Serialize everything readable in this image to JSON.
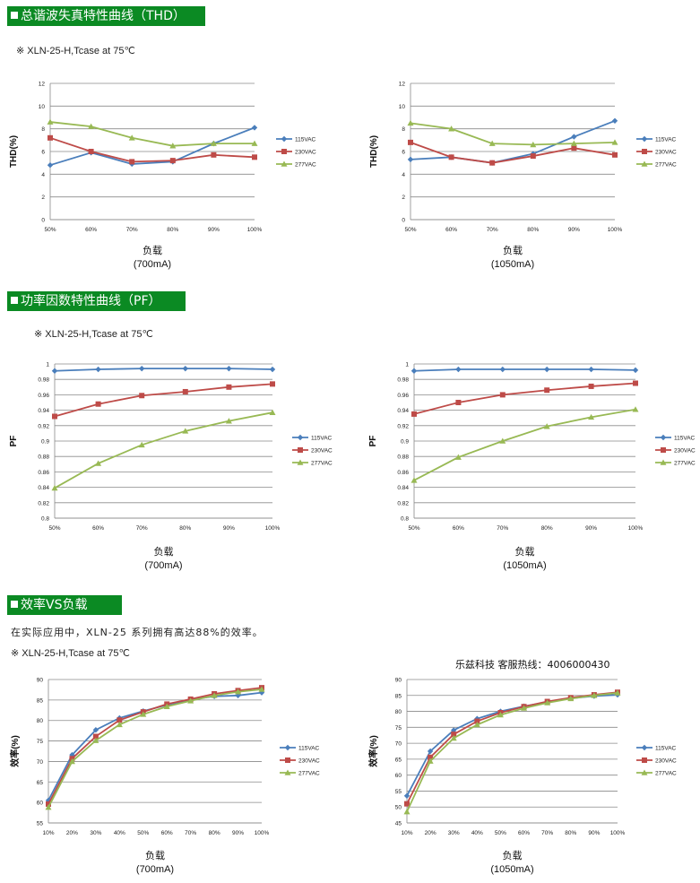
{
  "sections": {
    "thd": {
      "title": "总谐波失真特性曲线（THD）",
      "note": "※ XLN-25-H,Tcase at 75℃"
    },
    "pf": {
      "title": "功率因数特性曲线（PF）",
      "note": "※ XLN-25-H,Tcase at 75℃"
    },
    "eff": {
      "title": "效率VS负载",
      "desc": "在实际应用中，XLN-25 系列拥有高达88%的效率。",
      "note": "※ XLN-25-H,Tcase at 75℃",
      "contact": "乐兹科技 客服热线：4006000430"
    }
  },
  "chart_data": [
    {
      "id": "thd-700",
      "type": "line",
      "categories": [
        "50%",
        "60%",
        "70%",
        "80%",
        "90%",
        "100%"
      ],
      "ylabel": "THD(%)",
      "xlabel": "负载",
      "xsub": "(700mA)",
      "ylim": [
        0,
        12
      ],
      "yticks": [
        "0",
        "2",
        "4",
        "6",
        "8",
        "10",
        "12"
      ],
      "grid": true,
      "legend": "right",
      "series": [
        {
          "name": "115VAC",
          "color": "#4a7ebb",
          "marker": "diamond",
          "values": [
            4.8,
            5.9,
            4.9,
            5.1,
            6.7,
            8.1
          ]
        },
        {
          "name": "230VAC",
          "color": "#be4b48",
          "marker": "square",
          "values": [
            7.2,
            6.0,
            5.1,
            5.2,
            5.7,
            5.5
          ]
        },
        {
          "name": "277VAC",
          "color": "#98b954",
          "marker": "triangle",
          "values": [
            8.6,
            8.2,
            7.2,
            6.5,
            6.7,
            6.7
          ]
        }
      ]
    },
    {
      "id": "thd-1050",
      "type": "line",
      "categories": [
        "50%",
        "60%",
        "70%",
        "80%",
        "90%",
        "100%"
      ],
      "ylabel": "THD(%)",
      "xlabel": "负载",
      "xsub": "(1050mA)",
      "ylim": [
        0,
        12
      ],
      "yticks": [
        "0",
        "2",
        "4",
        "6",
        "8",
        "10",
        "12"
      ],
      "grid": true,
      "legend": "right",
      "series": [
        {
          "name": "115VAC",
          "color": "#4a7ebb",
          "marker": "diamond",
          "values": [
            5.3,
            5.5,
            5.0,
            5.8,
            7.3,
            8.7
          ]
        },
        {
          "name": "230VAC",
          "color": "#be4b48",
          "marker": "square",
          "values": [
            6.8,
            5.5,
            5.0,
            5.6,
            6.3,
            5.7
          ]
        },
        {
          "name": "277VAC",
          "color": "#98b954",
          "marker": "triangle",
          "values": [
            8.5,
            8.0,
            6.7,
            6.6,
            6.7,
            6.8
          ]
        }
      ]
    },
    {
      "id": "pf-700",
      "type": "line",
      "categories": [
        "50%",
        "60%",
        "70%",
        "80%",
        "90%",
        "100%"
      ],
      "ylabel": "PF",
      "xlabel": "负载",
      "xsub": "(700mA)",
      "ylim": [
        0.8,
        1
      ],
      "yticks": [
        "0.8",
        "0.82",
        "0.84",
        "0.86",
        "0.88",
        "0.9",
        "0.92",
        "0.94",
        "0.96",
        "0.98",
        "1"
      ],
      "grid": true,
      "legend": "right",
      "series": [
        {
          "name": "115VAC",
          "color": "#4a7ebb",
          "marker": "diamond",
          "values": [
            0.991,
            0.993,
            0.994,
            0.994,
            0.994,
            0.993
          ]
        },
        {
          "name": "230VAC",
          "color": "#be4b48",
          "marker": "square",
          "values": [
            0.932,
            0.948,
            0.959,
            0.964,
            0.97,
            0.974
          ]
        },
        {
          "name": "277VAC",
          "color": "#98b954",
          "marker": "triangle",
          "values": [
            0.839,
            0.871,
            0.895,
            0.913,
            0.926,
            0.937
          ]
        }
      ]
    },
    {
      "id": "pf-1050",
      "type": "line",
      "categories": [
        "50%",
        "60%",
        "70%",
        "80%",
        "90%",
        "100%"
      ],
      "ylabel": "PF",
      "xlabel": "负载",
      "xsub": "(1050mA)",
      "ylim": [
        0.8,
        1
      ],
      "yticks": [
        "0.8",
        "0.82",
        "0.84",
        "0.86",
        "0.88",
        "0.9",
        "0.92",
        "0.94",
        "0.96",
        "0.98",
        "1"
      ],
      "grid": true,
      "legend": "right",
      "series": [
        {
          "name": "115VAC",
          "color": "#4a7ebb",
          "marker": "diamond",
          "values": [
            0.991,
            0.993,
            0.993,
            0.993,
            0.993,
            0.992
          ]
        },
        {
          "name": "230VAC",
          "color": "#be4b48",
          "marker": "square",
          "values": [
            0.935,
            0.95,
            0.96,
            0.966,
            0.971,
            0.975
          ]
        },
        {
          "name": "277VAC",
          "color": "#98b954",
          "marker": "triangle",
          "values": [
            0.849,
            0.879,
            0.9,
            0.919,
            0.931,
            0.941
          ]
        }
      ]
    },
    {
      "id": "eff-700",
      "type": "line",
      "categories": [
        "10%",
        "20%",
        "30%",
        "40%",
        "50%",
        "60%",
        "70%",
        "80%",
        "90%",
        "100%"
      ],
      "ylabel": "效率(%)",
      "xlabel": "负载",
      "xsub": "(700mA)",
      "ylim": [
        55,
        90
      ],
      "yticks": [
        "55",
        "60",
        "65",
        "70",
        "75",
        "80",
        "85",
        "90"
      ],
      "grid": true,
      "legend": "right",
      "series": [
        {
          "name": "115VAC",
          "color": "#4a7ebb",
          "marker": "diamond",
          "values": [
            60.5,
            71.6,
            77.7,
            80.6,
            82.3,
            83.8,
            85.1,
            85.9,
            86.1,
            86.8
          ]
        },
        {
          "name": "230VAC",
          "color": "#be4b48",
          "marker": "square",
          "values": [
            59.6,
            70.7,
            76.1,
            80.1,
            82.1,
            84.0,
            85.2,
            86.5,
            87.3,
            88.0
          ]
        },
        {
          "name": "277VAC",
          "color": "#98b954",
          "marker": "triangle",
          "values": [
            58.8,
            70.0,
            75.1,
            79.0,
            81.5,
            83.4,
            84.8,
            86.1,
            87.0,
            87.6
          ]
        }
      ]
    },
    {
      "id": "eff-1050",
      "type": "line",
      "categories": [
        "10%",
        "20%",
        "30%",
        "40%",
        "50%",
        "60%",
        "70%",
        "80%",
        "90%",
        "100%"
      ],
      "ylabel": "效率(%)",
      "xlabel": "负载",
      "xsub": "(1050mA)",
      "ylim": [
        45,
        90
      ],
      "yticks": [
        "45",
        "50",
        "55",
        "60",
        "65",
        "70",
        "75",
        "80",
        "85",
        "90"
      ],
      "grid": true,
      "legend": "right",
      "series": [
        {
          "name": "115VAC",
          "color": "#4a7ebb",
          "marker": "diamond",
          "values": [
            53.5,
            67.5,
            74.1,
            77.7,
            80.0,
            81.6,
            82.9,
            84.1,
            84.8,
            85.2
          ]
        },
        {
          "name": "230VAC",
          "color": "#be4b48",
          "marker": "square",
          "values": [
            51.0,
            65.6,
            72.8,
            76.9,
            79.6,
            81.5,
            83.1,
            84.3,
            85.2,
            86.0
          ]
        },
        {
          "name": "277VAC",
          "color": "#98b954",
          "marker": "triangle",
          "values": [
            48.5,
            64.4,
            71.6,
            75.8,
            78.9,
            81.0,
            82.7,
            84.0,
            85.0,
            85.8
          ]
        }
      ]
    }
  ]
}
